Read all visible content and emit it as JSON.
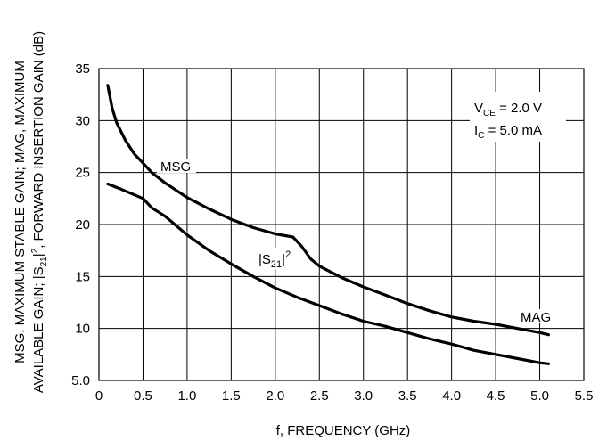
{
  "chart_data": {
    "type": "line",
    "xlabel": "f, FREQUENCY (GHz)",
    "ylabel_line1": "MSG, MAXIMUM STABLE GAIN; MAG, MAXIMUM",
    "ylabel_line2_a": "AVAILABLE GAIN; |S",
    "ylabel_line2_sub": "21",
    "ylabel_line2_b": "|",
    "ylabel_line2_sup": "2",
    "ylabel_line2_c": ", FORWARD INSERTION GAIN (dB)",
    "xlim": [
      0,
      5.5
    ],
    "ylim": [
      5,
      35
    ],
    "grid": true,
    "x_ticks": [
      "0",
      "0.5",
      "1.0",
      "1.5",
      "2.0",
      "2.5",
      "3.0",
      "3.5",
      "4.0",
      "4.5",
      "5.0",
      "5.5"
    ],
    "x_tick_values": [
      0,
      0.5,
      1.0,
      1.5,
      2.0,
      2.5,
      3.0,
      3.5,
      4.0,
      4.5,
      5.0,
      5.5
    ],
    "y_ticks": [
      "5.0",
      "10",
      "15",
      "20",
      "25",
      "30",
      "35"
    ],
    "y_tick_values": [
      5,
      10,
      15,
      20,
      25,
      30,
      35
    ],
    "conditions": {
      "vce_prefix": "V",
      "vce_sub": "CE",
      "vce_value": " = 2.0 V",
      "ic_prefix": "I",
      "ic_sub": "C",
      "ic_value": " = 5.0 mA"
    },
    "series": [
      {
        "name": "MSG / MAG",
        "label_msg": "MSG",
        "label_mag": "MAG",
        "x": [
          0.1,
          0.15,
          0.2,
          0.3,
          0.4,
          0.5,
          0.6,
          0.75,
          1.0,
          1.25,
          1.5,
          1.75,
          2.0,
          2.2,
          2.3,
          2.4,
          2.5,
          2.75,
          3.0,
          3.25,
          3.5,
          3.75,
          4.0,
          4.25,
          4.5,
          4.75,
          5.0,
          5.1
        ],
        "y": [
          33.4,
          31.2,
          29.8,
          28.1,
          26.8,
          25.9,
          25.0,
          24.0,
          22.6,
          21.5,
          20.5,
          19.7,
          19.1,
          18.8,
          17.9,
          16.7,
          16.0,
          14.9,
          14.0,
          13.2,
          12.4,
          11.7,
          11.1,
          10.7,
          10.4,
          10.0,
          9.6,
          9.4
        ]
      },
      {
        "name": "|S21|^2",
        "label_a": "|S",
        "label_sub": "21",
        "label_b": "|",
        "label_sup": "2",
        "x": [
          0.1,
          0.25,
          0.5,
          0.6,
          0.75,
          1.0,
          1.25,
          1.5,
          1.75,
          2.0,
          2.25,
          2.5,
          2.75,
          3.0,
          3.25,
          3.5,
          3.75,
          4.0,
          4.25,
          4.5,
          4.75,
          5.0,
          5.1
        ],
        "y": [
          23.9,
          23.4,
          22.5,
          21.6,
          20.8,
          19.0,
          17.5,
          16.2,
          15.0,
          13.9,
          13.0,
          12.2,
          11.4,
          10.7,
          10.2,
          9.6,
          9.0,
          8.5,
          7.9,
          7.5,
          7.1,
          6.7,
          6.6
        ]
      }
    ]
  }
}
